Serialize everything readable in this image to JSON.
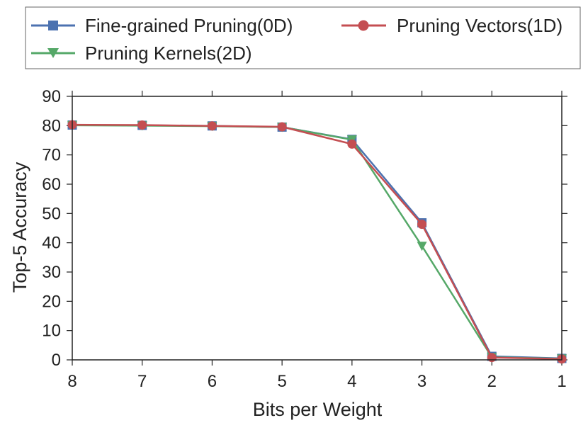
{
  "chart_data": {
    "type": "line",
    "xlabel": "Bits per Weight",
    "ylabel": "Top-5 Accuracy",
    "x": [
      8,
      7,
      6,
      5,
      4,
      3,
      2,
      1
    ],
    "x_tick_labels": [
      "8",
      "7",
      "6",
      "5",
      "4",
      "3",
      "2",
      "1"
    ],
    "xlim": [
      8,
      1
    ],
    "ylim": [
      0,
      90
    ],
    "y_ticks": [
      0,
      10,
      20,
      30,
      40,
      50,
      60,
      70,
      80,
      90
    ],
    "y_tick_labels": [
      "0",
      "10",
      "20",
      "30",
      "40",
      "50",
      "60",
      "70",
      "80",
      "90"
    ],
    "grid": false,
    "legend_position": "top, outside plot",
    "series": [
      {
        "name": "Fine-grained Pruning(0D)",
        "color": "#4c72b0",
        "marker": "square",
        "values": [
          80.2,
          80.1,
          79.9,
          79.5,
          75.3,
          46.8,
          1.2,
          0.5
        ]
      },
      {
        "name": "Pruning Vectors(1D)",
        "color": "#c44e52",
        "marker": "circle",
        "values": [
          80.3,
          80.2,
          79.9,
          79.6,
          73.7,
          46.3,
          0.8,
          0.3
        ]
      },
      {
        "name": "Pruning Kernels(2D)",
        "color": "#55a868",
        "marker": "triangle-down",
        "values": [
          80.1,
          80.0,
          79.8,
          79.5,
          75.2,
          38.9,
          0.9,
          0.4
        ]
      }
    ]
  }
}
